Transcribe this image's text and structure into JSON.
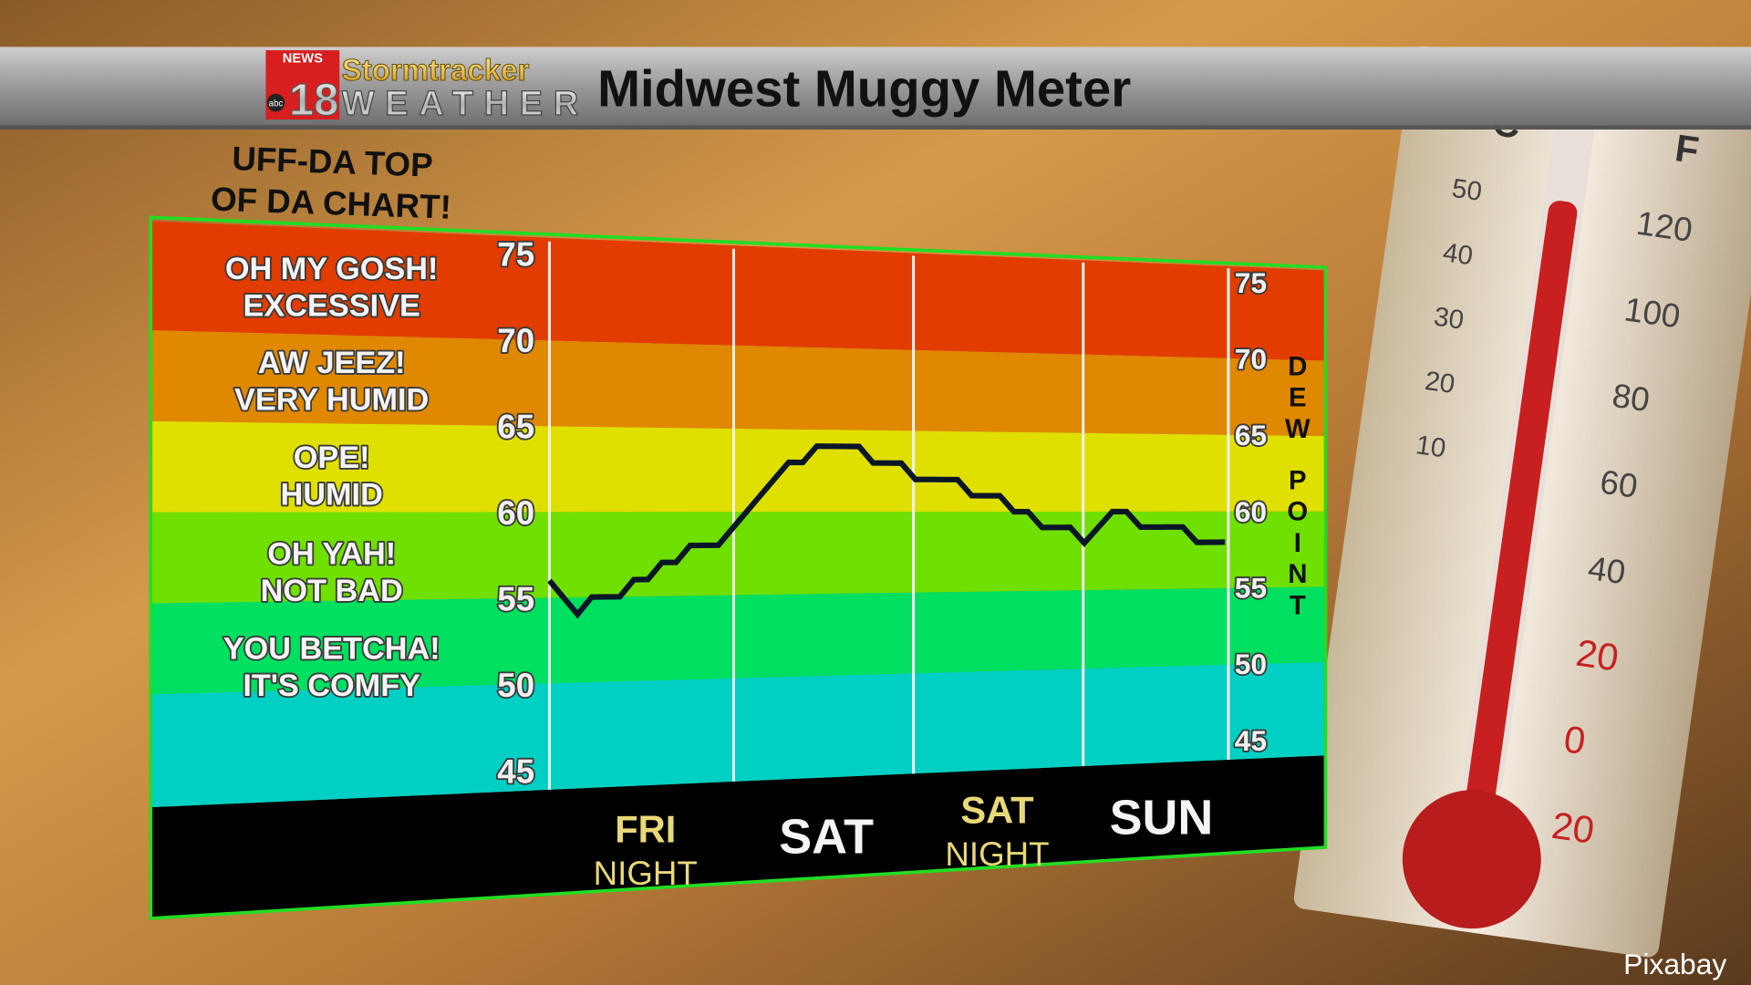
{
  "header": {
    "title": "Midwest Muggy Meter",
    "logo": {
      "news": "NEWS",
      "number": "18",
      "network": "abc",
      "line1": "Stormtracker",
      "line2": "WEATHER"
    }
  },
  "top_note": [
    "UFF-DA TOP",
    "OF DA CHART!"
  ],
  "credit": "Pixabay",
  "thermometer": {
    "c_label": "C",
    "f_label": "F",
    "c_ticks": [
      "50",
      "40",
      "30",
      "20",
      "10"
    ],
    "f_ticks": [
      "120",
      "100",
      "80",
      "60",
      "40",
      "20",
      "0",
      "20"
    ]
  },
  "colors": {
    "red": "#e23c00",
    "orange": "#e08800",
    "yellow": "#e0e000",
    "lime": "#70e000",
    "green": "#00e060",
    "teal": "#00d0c4",
    "line": "#0a1628",
    "night_label": "#e8d878",
    "outline": "#22dd22"
  },
  "chart_data": {
    "type": "line",
    "title": "",
    "ylabel": "DEW POINT",
    "ylim": [
      45,
      75
    ],
    "yticks": [
      "75",
      "70",
      "65",
      "60",
      "55",
      "50",
      "45"
    ],
    "bands": [
      {
        "label": [
          "OH MY GOSH!",
          "EXCESSIVE"
        ],
        "from": 70,
        "to": 76,
        "color": "red"
      },
      {
        "label": [
          "AW JEEZ!",
          "VERY HUMID"
        ],
        "from": 65,
        "to": 70,
        "color": "orange"
      },
      {
        "label": [
          "OPE!",
          "HUMID"
        ],
        "from": 60,
        "to": 65,
        "color": "yellow"
      },
      {
        "label": [
          "OH YAH!",
          "NOT BAD"
        ],
        "from": 55,
        "to": 60,
        "color": "lime"
      },
      {
        "label": [
          "YOU BETCHA!",
          "IT'S COMFY"
        ],
        "from": 50,
        "to": 55,
        "color": "green"
      },
      {
        "label": [],
        "from": 43.8,
        "to": 50,
        "color": "teal"
      }
    ],
    "periods": [
      {
        "label": [
          "FRI",
          "NIGHT"
        ],
        "night": true
      },
      {
        "label": [
          "SAT"
        ],
        "night": false
      },
      {
        "label": [
          "SAT",
          "NIGHT"
        ],
        "night": true
      },
      {
        "label": [
          "SUN"
        ],
        "night": false
      }
    ],
    "series": [
      {
        "values": [
          56,
          55,
          54,
          55,
          55,
          55,
          56,
          56,
          57,
          57,
          58,
          58,
          58,
          59,
          60,
          61,
          62,
          63,
          63,
          64,
          64,
          64,
          64,
          63,
          63,
          63,
          62,
          62,
          62,
          62,
          61,
          61,
          61,
          60,
          60,
          59,
          59,
          59,
          58,
          59,
          60,
          60,
          59,
          59,
          59,
          59,
          58,
          58,
          58
        ]
      }
    ]
  }
}
